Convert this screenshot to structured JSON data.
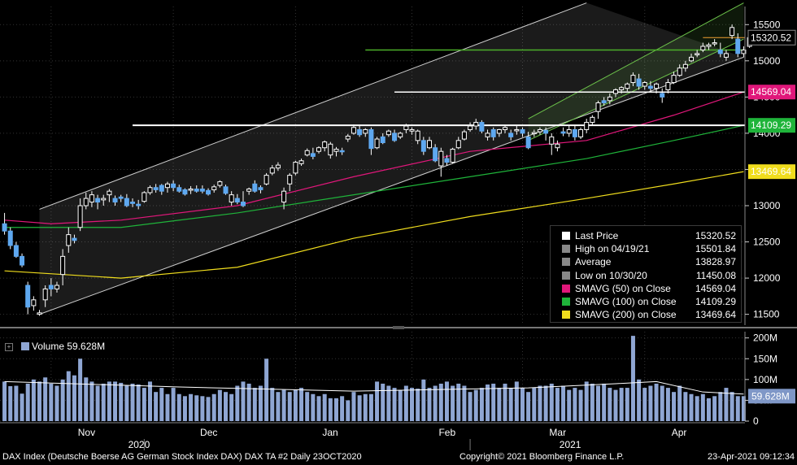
{
  "chart_data": [
    {
      "type": "candlestick",
      "title": "",
      "x_axis": {
        "month_labels": [
          "Nov",
          "Dec",
          "Jan",
          "Feb",
          "Mar",
          "Apr"
        ],
        "year_labels": [
          "2020",
          "2021"
        ]
      },
      "y_axis": {
        "ticks": [
          11500,
          12000,
          12500,
          13000,
          13500,
          14000,
          14500,
          15000,
          15500
        ],
        "ylim": [
          11350,
          15750
        ]
      },
      "value_tags": [
        {
          "value": "15320.52",
          "color": "#000000",
          "text_color": "#ffffff"
        },
        {
          "value": "14569.04",
          "color": "#e0177a",
          "text_color": "#ffffff"
        },
        {
          "value": "14109.29",
          "color": "#1fb43a",
          "text_color": "#ffffff"
        },
        {
          "value": "13469.64",
          "color": "#f0dd1d",
          "text_color": "#000000"
        }
      ],
      "sessions": 128,
      "candles_ohlc": [
        [
          12750,
          12900,
          12600,
          12650
        ],
        [
          12650,
          12700,
          12400,
          12450
        ],
        [
          12450,
          12500,
          12280,
          12300
        ],
        [
          12300,
          12340,
          12150,
          12180
        ],
        [
          11900,
          11950,
          11500,
          11600
        ],
        [
          11620,
          11750,
          11550,
          11700
        ],
        [
          11500,
          11560,
          11480,
          11520
        ],
        [
          11700,
          11900,
          11600,
          11850
        ],
        [
          11900,
          12000,
          11750,
          11850
        ],
        [
          11850,
          11950,
          11800,
          11900
        ],
        [
          12050,
          12400,
          11900,
          12300
        ],
        [
          12450,
          12700,
          12350,
          12600
        ],
        [
          12550,
          12600,
          12480,
          12520
        ],
        [
          12700,
          13100,
          12650,
          13000
        ],
        [
          13000,
          13180,
          12950,
          13100
        ],
        [
          13050,
          13200,
          12980,
          13150
        ],
        [
          13100,
          13150,
          12950,
          13050
        ],
        [
          13080,
          13150,
          13000,
          13100
        ],
        [
          13150,
          13230,
          13050,
          13200
        ],
        [
          13100,
          13140,
          13000,
          13050
        ],
        [
          13120,
          13150,
          13050,
          13100
        ],
        [
          13100,
          13160,
          12980,
          13000
        ],
        [
          13050,
          13100,
          12980,
          13030
        ],
        [
          13020,
          13080,
          12950,
          13000
        ],
        [
          13060,
          13200,
          13040,
          13180
        ],
        [
          13180,
          13280,
          13150,
          13250
        ],
        [
          13250,
          13300,
          13180,
          13220
        ],
        [
          13280,
          13300,
          13150,
          13200
        ],
        [
          13250,
          13330,
          13180,
          13300
        ],
        [
          13300,
          13350,
          13200,
          13250
        ],
        [
          13250,
          13290,
          13180,
          13200
        ],
        [
          13220,
          13240,
          13140,
          13160
        ],
        [
          13220,
          13270,
          13160,
          13230
        ],
        [
          13230,
          13280,
          13180,
          13200
        ],
        [
          13230,
          13280,
          13170,
          13200
        ],
        [
          13210,
          13240,
          13140,
          13160
        ],
        [
          13220,
          13290,
          13180,
          13260
        ],
        [
          13280,
          13350,
          13250,
          13330
        ],
        [
          13260,
          13290,
          13150,
          13170
        ],
        [
          13050,
          13200,
          13000,
          13150
        ],
        [
          13100,
          13160,
          13020,
          13050
        ],
        [
          13050,
          13200,
          12980,
          13000
        ],
        [
          13200,
          13250,
          13150,
          13230
        ],
        [
          13300,
          13350,
          13180,
          13200
        ],
        [
          13250,
          13280,
          13170,
          13220
        ],
        [
          13300,
          13450,
          13280,
          13420
        ],
        [
          13450,
          13560,
          13420,
          13520
        ],
        [
          13520,
          13600,
          13480,
          13560
        ],
        [
          13050,
          13250,
          12950,
          13200
        ],
        [
          13300,
          13450,
          13200,
          13420
        ],
        [
          13450,
          13620,
          13420,
          13600
        ],
        [
          13580,
          13650,
          13550,
          13620
        ],
        [
          13700,
          13790,
          13680,
          13760
        ],
        [
          13720,
          13800,
          13640,
          13680
        ],
        [
          13750,
          13820,
          13720,
          13800
        ],
        [
          13800,
          13900,
          13750,
          13880
        ],
        [
          13700,
          13880,
          13650,
          13850
        ],
        [
          13750,
          13810,
          13680,
          13780
        ],
        [
          13760,
          13800,
          13700,
          13750
        ],
        [
          13920,
          13990,
          13880,
          13960
        ],
        [
          14000,
          14120,
          13980,
          14080
        ],
        [
          14050,
          14100,
          13950,
          13980
        ],
        [
          14000,
          14070,
          13950,
          14050
        ],
        [
          14050,
          14080,
          13700,
          13790
        ],
        [
          13800,
          13950,
          13780,
          13920
        ],
        [
          13950,
          14000,
          13850,
          13870
        ],
        [
          13980,
          14050,
          13950,
          14030
        ],
        [
          14000,
          14050,
          13880,
          13900
        ],
        [
          13950,
          14020,
          13920,
          14000
        ],
        [
          14050,
          14130,
          14000,
          14100
        ],
        [
          14030,
          14080,
          13980,
          14050
        ],
        [
          13900,
          14050,
          13850,
          14030
        ],
        [
          13900,
          13950,
          13700,
          13750
        ],
        [
          13800,
          13950,
          13780,
          13900
        ],
        [
          13800,
          13850,
          13600,
          13620
        ],
        [
          13550,
          13800,
          13400,
          13750
        ],
        [
          13650,
          13700,
          13550,
          13600
        ],
        [
          13600,
          13800,
          13580,
          13780
        ],
        [
          13800,
          13950,
          13780,
          13900
        ],
        [
          13920,
          14050,
          13900,
          14020
        ],
        [
          14050,
          14150,
          14020,
          14100
        ],
        [
          14100,
          14200,
          14050,
          14150
        ],
        [
          14150,
          14180,
          14000,
          14030
        ],
        [
          13950,
          14050,
          13900,
          14000
        ],
        [
          14050,
          14080,
          13900,
          13950
        ],
        [
          14000,
          14060,
          13950,
          14050
        ],
        [
          14050,
          14100,
          14000,
          14080
        ],
        [
          14000,
          14050,
          13900,
          13950
        ],
        [
          14050,
          14100,
          13980,
          14050
        ],
        [
          14050,
          14080,
          13950,
          14000
        ],
        [
          13950,
          14020,
          13780,
          13800
        ],
        [
          14000,
          14050,
          13950,
          14010
        ],
        [
          14020,
          14080,
          13980,
          14050
        ],
        [
          14040,
          14080,
          13900,
          14000
        ],
        [
          13850,
          14000,
          13700,
          13950
        ],
        [
          13800,
          13900,
          13750,
          13850
        ],
        [
          14020,
          14080,
          13960,
          14000
        ],
        [
          14000,
          14100,
          13950,
          14050
        ],
        [
          14050,
          14100,
          13900,
          13950
        ],
        [
          13950,
          14080,
          13920,
          14050
        ],
        [
          14050,
          14200,
          14000,
          14150
        ],
        [
          14150,
          14250,
          14100,
          14220
        ],
        [
          14300,
          14450,
          14200,
          14420
        ],
        [
          14450,
          14500,
          14380,
          14420
        ],
        [
          14450,
          14550,
          14400,
          14500
        ],
        [
          14550,
          14620,
          14500,
          14600
        ],
        [
          14600,
          14650,
          14550,
          14630
        ],
        [
          14620,
          14700,
          14580,
          14680
        ],
        [
          14700,
          14840,
          14650,
          14800
        ],
        [
          14750,
          14820,
          14600,
          14650
        ],
        [
          14650,
          14720,
          14600,
          14700
        ],
        [
          14650,
          14720,
          14580,
          14620
        ],
        [
          14620,
          14700,
          14550,
          14680
        ],
        [
          14550,
          14620,
          14420,
          14500
        ],
        [
          14600,
          14750,
          14550,
          14700
        ],
        [
          14700,
          14850,
          14680,
          14800
        ],
        [
          14800,
          14950,
          14780,
          14900
        ],
        [
          14900,
          15000,
          14850,
          14950
        ],
        [
          15000,
          15100,
          14980,
          15050
        ],
        [
          15100,
          15150,
          15050,
          15100
        ],
        [
          15150,
          15250,
          15120,
          15200
        ],
        [
          15200,
          15250,
          15150,
          15220
        ],
        [
          15250,
          15300,
          15200,
          15250
        ],
        [
          15150,
          15250,
          15050,
          15100
        ],
        [
          15050,
          15150,
          15000,
          15100
        ],
        [
          15350,
          15502,
          15300,
          15460
        ],
        [
          15300,
          15380,
          15050,
          15100
        ],
        [
          15100,
          15200,
          15050,
          15150
        ],
        [
          15200,
          15350,
          15180,
          15320
        ]
      ],
      "series": [
        {
          "name": "SMAVG (50) on Close",
          "color": "#e0177a",
          "points": [
            [
              0,
              12800
            ],
            [
              8,
              12750
            ],
            [
              20,
              12800
            ],
            [
              40,
              13000
            ],
            [
              60,
              13400
            ],
            [
              80,
              13750
            ],
            [
              100,
              13900
            ],
            [
              115,
              14250
            ],
            [
              127,
              14569
            ]
          ]
        },
        {
          "name": "SMAVG (100) on Close",
          "color": "#1fb43a",
          "points": [
            [
              0,
              12700
            ],
            [
              20,
              12700
            ],
            [
              40,
              12900
            ],
            [
              60,
              13150
            ],
            [
              80,
              13400
            ],
            [
              100,
              13650
            ],
            [
              115,
              13900
            ],
            [
              127,
              14109
            ]
          ]
        },
        {
          "name": "SMAVG (200) on Close",
          "color": "#f0dd1d",
          "points": [
            [
              0,
              12100
            ],
            [
              20,
              12000
            ],
            [
              40,
              12150
            ],
            [
              60,
              12550
            ],
            [
              80,
              12850
            ],
            [
              100,
              13100
            ],
            [
              115,
              13300
            ],
            [
              127,
              13470
            ]
          ]
        }
      ],
      "reference_lines": [
        {
          "label": "15320.52",
          "value": 15320.52,
          "color": "#f0a030"
        },
        {
          "label": "14569.04",
          "value": 14569.04,
          "color": "#ffffff"
        },
        {
          "label": "14109.29",
          "value": 14109.29,
          "color": "#ffffff"
        }
      ],
      "trend_channels": [
        {
          "name": "white-channel",
          "color": "#d0d0d0",
          "lower": [
            [
              6,
              11500
            ],
            [
              127,
              15050
            ]
          ],
          "upper": [
            [
              6,
              12950
            ],
            [
              100,
              15800
            ]
          ]
        },
        {
          "name": "green-channel",
          "color": "#6cc24a",
          "lower": [
            [
              90,
              13900
            ],
            [
              127,
              15300
            ]
          ],
          "upper": [
            [
              90,
              14200
            ],
            [
              127,
              15800
            ]
          ]
        }
      ],
      "legend": [
        {
          "name": "Last Price",
          "value": "15320.52",
          "swatch": "#ffffff"
        },
        {
          "name": "High on 04/19/21",
          "value": "15501.84",
          "swatch": "#888888"
        },
        {
          "name": "Average",
          "value": "13828.97",
          "swatch": "#888888"
        },
        {
          "name": "Low on 10/30/20",
          "value": "11450.08",
          "swatch": "#888888"
        },
        {
          "name": "SMAVG (50)  on Close",
          "value": "14569.04",
          "swatch": "#e0177a"
        },
        {
          "name": "SMAVG (100)  on Close",
          "value": "14109.29",
          "swatch": "#1fb43a"
        },
        {
          "name": "SMAVG (200)  on Close",
          "value": "13469.64",
          "swatch": "#f0dd1d"
        }
      ]
    },
    {
      "type": "bar",
      "title": "",
      "series_name": "Volume",
      "last_value": "59.628M",
      "y_axis": {
        "ticks": [
          "0",
          "50M",
          "100M",
          "150M",
          "200M"
        ],
        "ylim": [
          0,
          215
        ]
      },
      "values_millions": [
        95,
        84,
        85,
        66,
        90,
        100,
        95,
        105,
        90,
        85,
        100,
        120,
        110,
        150,
        105,
        95,
        85,
        90,
        95,
        95,
        92,
        85,
        90,
        88,
        80,
        95,
        70,
        80,
        65,
        80,
        65,
        60,
        65,
        62,
        60,
        58,
        65,
        75,
        70,
        65,
        85,
        95,
        90,
        80,
        85,
        150,
        80,
        70,
        75,
        70,
        75,
        80,
        70,
        65,
        60,
        65,
        55,
        55,
        60,
        50,
        70,
        62,
        65,
        65,
        95,
        90,
        85,
        80,
        75,
        85,
        80,
        78,
        100,
        80,
        85,
        90,
        95,
        85,
        90,
        85,
        70,
        75,
        80,
        88,
        90,
        80,
        90,
        80,
        95,
        80,
        70,
        80,
        85,
        85,
        90,
        80,
        85,
        75,
        80,
        75,
        95,
        90,
        85,
        90,
        80,
        75,
        80,
        80,
        205,
        100,
        80,
        85,
        90,
        85,
        80,
        70,
        85,
        70,
        65,
        60,
        65,
        55,
        60,
        70,
        80,
        70,
        60,
        60
      ],
      "average_line": [
        [
          0,
          95
        ],
        [
          30,
          82
        ],
        [
          60,
          72
        ],
        [
          90,
          80
        ],
        [
          105,
          90
        ],
        [
          112,
          95
        ],
        [
          120,
          70
        ],
        [
          127,
          65
        ]
      ]
    }
  ],
  "volume_label": "Volume",
  "volume_value": "59.628M",
  "footer": {
    "left": "DAX Index (Deutsche Boerse AG German Stock Index DAX) DAX TA #2  Daily 23OCT2020",
    "mid": "Copyright© 2021 Bloomberg Finance L.P.",
    "right": "23-Apr-2021 09:12:34"
  }
}
